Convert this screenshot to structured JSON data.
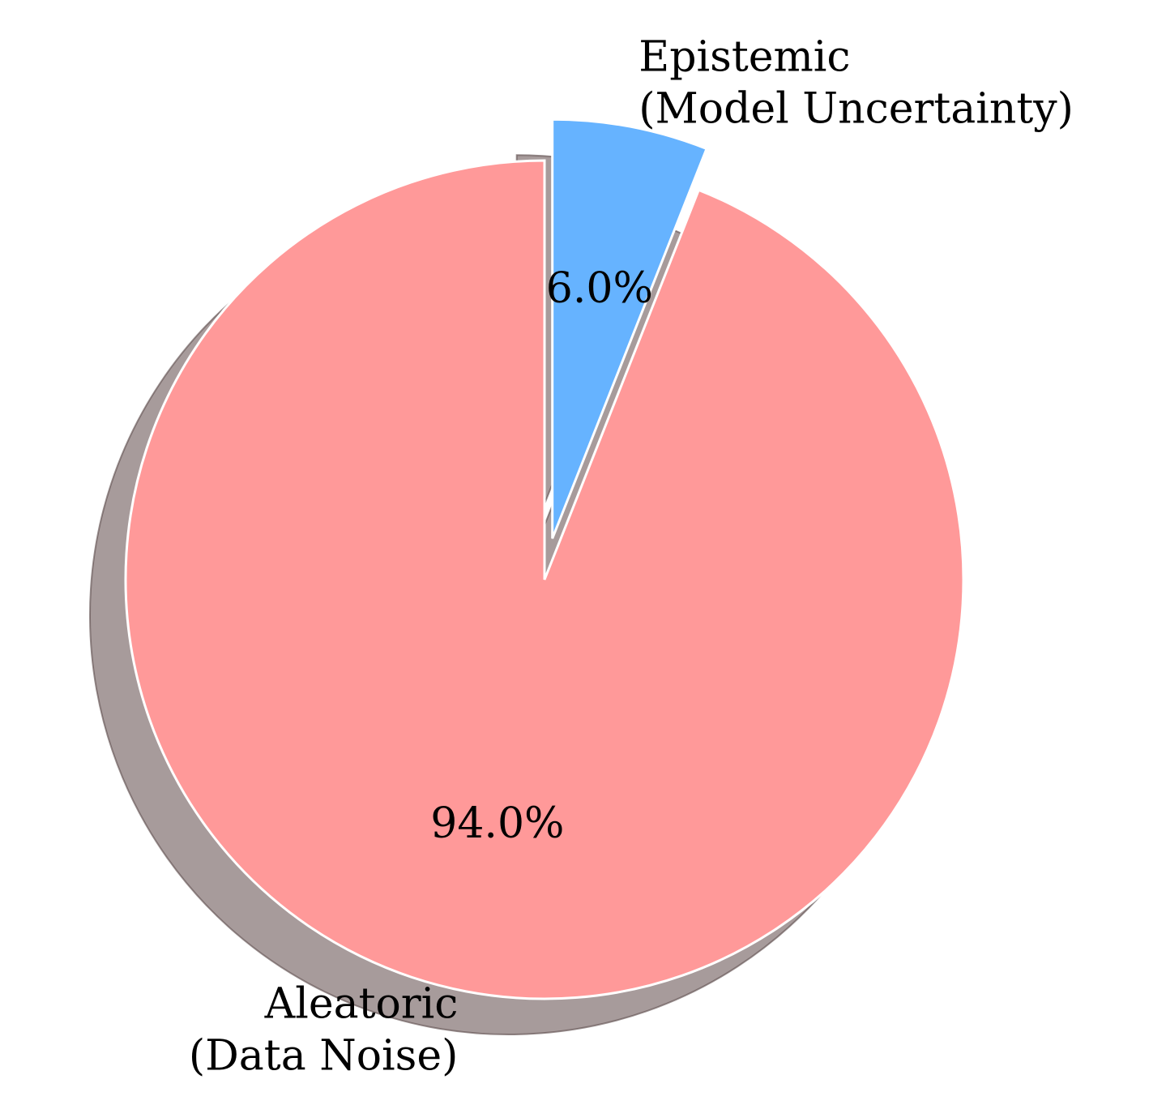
{
  "chart_data": {
    "type": "pie",
    "categories": [
      "Aleatoric\n(Data Noise)",
      "Epistemic\n(Model Uncertainty)"
    ],
    "values": [
      94.0,
      6.0
    ],
    "value_labels": [
      "94.0%",
      "6.0%"
    ],
    "colors": [
      "#ff9999",
      "#66b3ff"
    ],
    "explode": [
      0,
      0.1
    ],
    "start_angle": 90,
    "shadow": true
  }
}
